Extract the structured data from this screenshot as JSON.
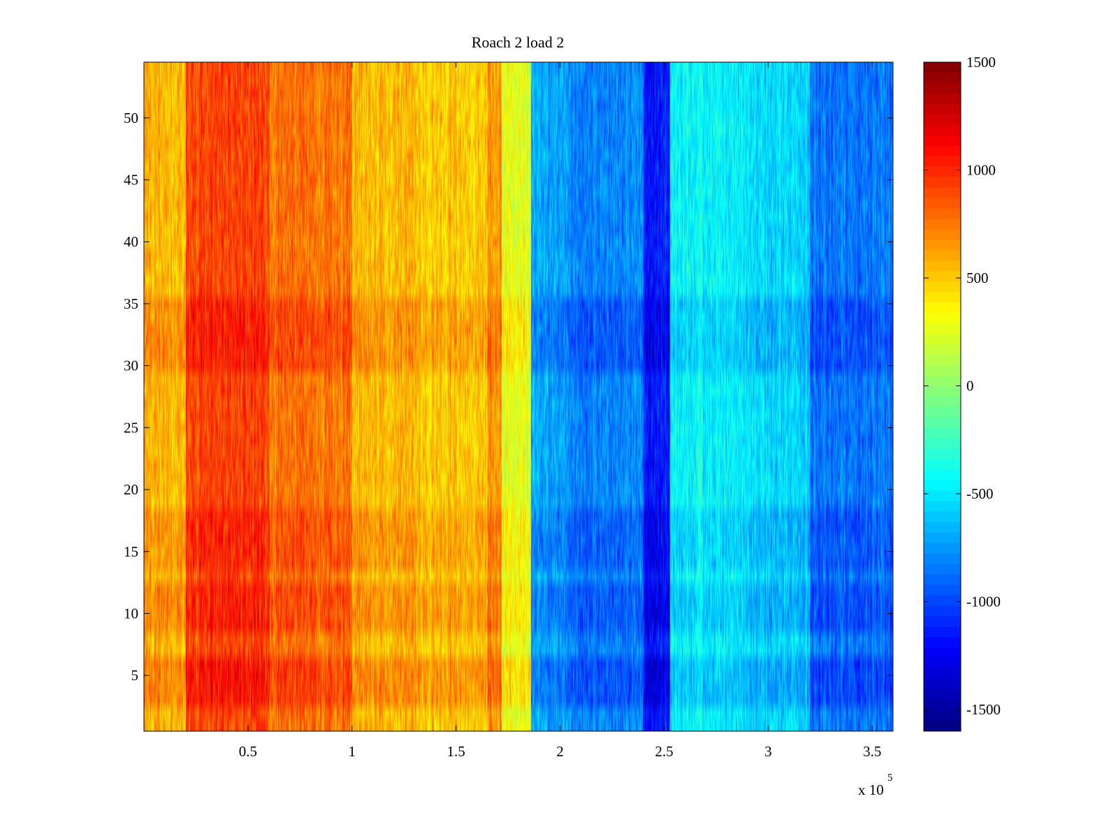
{
  "chart_data": {
    "type": "heatmap",
    "title": "Roach 2 load 2",
    "xlabel": "",
    "ylabel": "",
    "xlim": [
      0,
      360000
    ],
    "ylim": [
      0.5,
      54.5
    ],
    "x_ticks": [
      50000,
      100000,
      150000,
      200000,
      250000,
      300000,
      350000
    ],
    "x_tick_labels": [
      "0.5",
      "1",
      "1.5",
      "2",
      "2.5",
      "3",
      "3.5"
    ],
    "x_exponent_label": {
      "base": "x 10",
      "power": "5"
    },
    "y_ticks": [
      5,
      10,
      15,
      20,
      25,
      30,
      35,
      40,
      45,
      50
    ],
    "y_tick_labels": [
      "5",
      "10",
      "15",
      "20",
      "25",
      "30",
      "35",
      "40",
      "45",
      "50"
    ],
    "rows": 54,
    "colormap": "jet",
    "clim": [
      -1600,
      1500
    ],
    "colorbar": {
      "ticks": [
        1500,
        1000,
        500,
        0,
        -500,
        -1000,
        -1500
      ],
      "tick_labels": [
        "1500",
        "1000",
        "500",
        "0",
        "-500",
        "-1000",
        "-1500"
      ]
    },
    "column_bands": [
      {
        "x_start": 0,
        "x_end": 20000,
        "mean_value": 550
      },
      {
        "x_start": 20000,
        "x_end": 60000,
        "mean_value": 900
      },
      {
        "x_start": 60000,
        "x_end": 100000,
        "mean_value": 750
      },
      {
        "x_start": 100000,
        "x_end": 130000,
        "mean_value": 550
      },
      {
        "x_start": 130000,
        "x_end": 165000,
        "mean_value": 500
      },
      {
        "x_start": 165000,
        "x_end": 172000,
        "mean_value": 650
      },
      {
        "x_start": 172000,
        "x_end": 186000,
        "mean_value": 250
      },
      {
        "x_start": 186000,
        "x_end": 205000,
        "mean_value": -700
      },
      {
        "x_start": 205000,
        "x_end": 240000,
        "mean_value": -800
      },
      {
        "x_start": 240000,
        "x_end": 253000,
        "mean_value": -1150
      },
      {
        "x_start": 253000,
        "x_end": 290000,
        "mean_value": -450
      },
      {
        "x_start": 290000,
        "x_end": 320000,
        "mean_value": -550
      },
      {
        "x_start": 320000,
        "x_end": 360000,
        "mean_value": -850
      }
    ],
    "row_notes": [
      {
        "rows": [
          3,
          6
        ],
        "offset": 150
      },
      {
        "rows": [
          9,
          12
        ],
        "offset": 120
      },
      {
        "rows": [
          14,
          18
        ],
        "offset": 100
      },
      {
        "rows": [
          30,
          35
        ],
        "offset": 120
      }
    ],
    "noise_amplitude": 260,
    "grid": false,
    "legend": "colorbar-right"
  }
}
